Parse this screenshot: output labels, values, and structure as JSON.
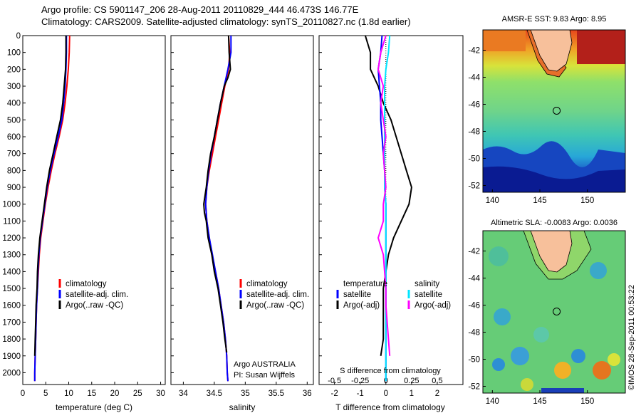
{
  "header": {
    "line1": "Argo profile: CS 5901147_206 28-Aug-2011 20110829_444 46.473S 146.77E",
    "line2": "Climatology: CARS2009. Satellite-adjusted climatology: synTS_20110827.nc (1.8d earlier)"
  },
  "colors": {
    "climatology": "#ff0000",
    "satellite": "#0000ff",
    "argo": "#000000",
    "salinity_satellite": "#00e5ff",
    "salinity_argo": "#ff00ff"
  },
  "chart_data": [
    {
      "type": "line",
      "panel": "temperature",
      "xlabel": "temperature (deg C)",
      "xlim": [
        0,
        31
      ],
      "xticks": [
        0,
        5,
        10,
        15,
        20,
        25,
        30
      ],
      "ylim": [
        2070,
        0
      ],
      "yticks": [
        0,
        100,
        200,
        300,
        400,
        500,
        600,
        700,
        800,
        900,
        1000,
        1100,
        1200,
        1300,
        1400,
        1500,
        1600,
        1700,
        1800,
        1900,
        2000
      ],
      "legend": [
        "climatology",
        "satellite-adj. clim.",
        "Argo(..raw -QC)"
      ],
      "series": [
        {
          "key": "climatology",
          "depth": [
            0,
            100,
            200,
            300,
            400,
            500,
            600,
            700,
            800,
            900,
            1000,
            1100,
            1200,
            1300,
            1400,
            1500,
            1600,
            1700,
            1800,
            1900,
            2000,
            2050
          ],
          "values": [
            10.2,
            10.1,
            9.9,
            9.6,
            9.2,
            8.7,
            7.9,
            7.0,
            6.2,
            5.5,
            4.9,
            4.4,
            3.9,
            3.6,
            3.4,
            3.2,
            3.0,
            2.9,
            2.8,
            2.7,
            2.6,
            2.6
          ]
        },
        {
          "key": "satellite",
          "depth": [
            0,
            100,
            200,
            300,
            400,
            500,
            600,
            700,
            800,
            900,
            1000,
            1100,
            1200,
            1300,
            1400,
            1500,
            1600,
            1700,
            1800,
            1900,
            2000,
            2050
          ],
          "values": [
            9.5,
            9.5,
            9.4,
            9.2,
            8.9,
            8.5,
            7.7,
            6.8,
            6.0,
            5.3,
            4.8,
            4.3,
            3.8,
            3.5,
            3.3,
            3.2,
            3.0,
            2.9,
            2.8,
            2.7,
            2.6,
            2.6
          ]
        },
        {
          "key": "argo",
          "depth": [
            0,
            100,
            200,
            300,
            400,
            500,
            600,
            700,
            800,
            900,
            1000,
            1100,
            1200,
            1300,
            1400,
            1500,
            1600,
            1700,
            1800,
            1900
          ],
          "values": [
            9.4,
            9.4,
            9.3,
            9.0,
            8.7,
            8.2,
            7.4,
            6.6,
            5.8,
            5.2,
            4.7,
            4.2,
            3.7,
            3.4,
            3.2,
            3.1,
            2.9,
            2.8,
            2.7,
            2.6
          ]
        }
      ]
    },
    {
      "type": "line",
      "panel": "salinity",
      "xlabel": "salinity",
      "xlim": [
        33.8,
        36.1
      ],
      "xticks": [
        34,
        34.5,
        35,
        35.5,
        36
      ],
      "xticklabels": [
        "34",
        "34.5",
        "35",
        "35.5",
        "36"
      ],
      "ylim": [
        2070,
        0
      ],
      "legend": [
        "climatology",
        "satellite-adj. clim.",
        "Argo(..raw -QC)"
      ],
      "annotation": [
        "Argo AUSTRALIA",
        "PI: Susan Wijffels"
      ],
      "series": [
        {
          "key": "climatology",
          "depth": [
            0,
            100,
            200,
            300,
            400,
            500,
            600,
            700,
            800,
            900,
            1000,
            1100,
            1200,
            1300,
            1400,
            1500,
            1600,
            1700,
            1800,
            1900,
            2000,
            2050
          ],
          "values": [
            34.73,
            34.75,
            34.73,
            34.67,
            34.62,
            34.57,
            34.52,
            34.47,
            34.42,
            34.38,
            34.36,
            34.38,
            34.42,
            34.46,
            34.52,
            34.57,
            34.61,
            34.65,
            34.68,
            34.7,
            34.71,
            34.72
          ]
        },
        {
          "key": "satellite",
          "depth": [
            0,
            100,
            200,
            300,
            400,
            500,
            600,
            700,
            800,
            900,
            1000,
            1100,
            1200,
            1300,
            1400,
            1500,
            1600,
            1700,
            1800,
            1900,
            2000,
            2050
          ],
          "values": [
            34.77,
            34.77,
            34.72,
            34.66,
            34.6,
            34.55,
            34.5,
            34.45,
            34.41,
            34.38,
            34.36,
            34.38,
            34.42,
            34.47,
            34.52,
            34.57,
            34.61,
            34.65,
            34.68,
            34.7,
            34.71,
            34.72
          ]
        },
        {
          "key": "argo",
          "depth": [
            0,
            100,
            200,
            250,
            300,
            400,
            500,
            600,
            700,
            800,
            900,
            1000,
            1050,
            1100,
            1200,
            1300,
            1400,
            1500,
            1600,
            1700,
            1800,
            1880
          ],
          "values": [
            34.73,
            34.74,
            34.76,
            34.72,
            34.66,
            34.6,
            34.55,
            34.5,
            34.44,
            34.4,
            34.37,
            34.33,
            34.34,
            34.37,
            34.4,
            34.46,
            34.5,
            34.56,
            34.6,
            34.64,
            34.67,
            34.7
          ]
        }
      ]
    },
    {
      "type": "line",
      "panel": "difference",
      "xlabel": "T difference from climatology",
      "xlabel_top": "S difference from climatology",
      "xlim": [
        -2.6,
        3.0
      ],
      "xticks": [
        -2,
        -1,
        0,
        1,
        2
      ],
      "s_xticklabels": [
        "-0.5",
        "-0.25",
        "0",
        "0.25",
        "0.5"
      ],
      "s_xtick_positions": [
        -2,
        -1,
        0,
        1,
        2
      ],
      "ylim": [
        2070,
        0
      ],
      "legend_temperature": [
        "temperature",
        "satellite",
        "Argo(-adj)"
      ],
      "legend_salinity": [
        "salinity",
        "satellite",
        "Argo(-adj)"
      ],
      "series": [
        {
          "key": "argo",
          "depth": [
            0,
            100,
            200,
            300,
            400,
            500,
            600,
            700,
            800,
            900,
            1000,
            1100,
            1200,
            1300,
            1400,
            1500,
            1600,
            1700,
            1800,
            1900
          ],
          "values": [
            -0.8,
            -0.6,
            -0.6,
            -0.3,
            -0.1,
            0.2,
            0.4,
            0.6,
            0.8,
            1.0,
            0.9,
            0.6,
            0.3,
            0.1,
            0.0,
            -0.1,
            -0.1,
            -0.1,
            -0.1,
            -0.2
          ]
        },
        {
          "key": "satellite",
          "depth": [
            0,
            100,
            200,
            300,
            400,
            500,
            600,
            700,
            800,
            900,
            1000,
            1100,
            1200,
            1300,
            1400,
            1500,
            1600,
            1700,
            1800,
            1900,
            2000,
            2050
          ],
          "values": [
            -0.15,
            -0.2,
            -0.3,
            -0.25,
            -0.2,
            -0.2,
            -0.15,
            -0.1,
            -0.05,
            -0.05,
            0.0,
            0.0,
            0.0,
            0.0,
            0.0,
            0.0,
            0.0,
            0.0,
            0.0,
            0.0,
            0.0,
            0.0
          ]
        },
        {
          "key": "salinity_satellite",
          "depth": [
            0,
            100,
            200,
            300,
            400,
            500,
            600,
            700,
            800,
            900,
            1000,
            1100,
            1200,
            1300,
            1400,
            1500,
            1600,
            1700,
            1800,
            1900,
            2000,
            2050
          ],
          "values": [
            0.15,
            0.1,
            0.0,
            -0.05,
            -0.05,
            -0.05,
            -0.05,
            -0.05,
            -0.05,
            -0.05,
            0.0,
            0.0,
            0.0,
            0.0,
            0.0,
            0.0,
            0.0,
            0.0,
            0.0,
            0.0,
            0.0,
            0.0
          ]
        },
        {
          "key": "salinity_argo",
          "depth": [
            0,
            100,
            200,
            300,
            400,
            500,
            600,
            700,
            800,
            900,
            1000,
            1100,
            1200,
            1300,
            1400,
            1500,
            1600,
            1700,
            1800,
            1900
          ],
          "values": [
            0.0,
            -0.2,
            -0.3,
            -0.1,
            -0.2,
            -0.1,
            0.0,
            -0.1,
            -0.05,
            0.0,
            -0.1,
            -0.1,
            -0.3,
            -0.1,
            -0.05,
            0.0,
            0.0,
            0.05,
            0.1,
            0.15
          ]
        }
      ]
    },
    {
      "type": "heatmap",
      "panel": "sst_map",
      "title": "AMSR-E SST: 9.83  Argo: 8.95",
      "xlim": [
        139,
        154
      ],
      "ylim": [
        -52.5,
        -40.5
      ],
      "xticks": [
        140,
        145,
        150
      ],
      "yticks": [
        -42,
        -44,
        -46,
        -48,
        -50,
        -52
      ],
      "float_position": {
        "lon": 146.77,
        "lat": -46.473
      }
    },
    {
      "type": "heatmap",
      "panel": "sla_map",
      "title": "Altimetric SLA: -0.0083  Argo: 0.0036",
      "xlim": [
        139,
        154
      ],
      "ylim": [
        -52.5,
        -40.5
      ],
      "xticks": [
        140,
        145,
        150
      ],
      "yticks": [
        -42,
        -44,
        -46,
        -48,
        -50,
        -52
      ],
      "float_position": {
        "lon": 146.77,
        "lat": -46.473
      }
    }
  ],
  "footer": {
    "stamp": "©IMOS 28-Sep-2011 00:53:22"
  }
}
